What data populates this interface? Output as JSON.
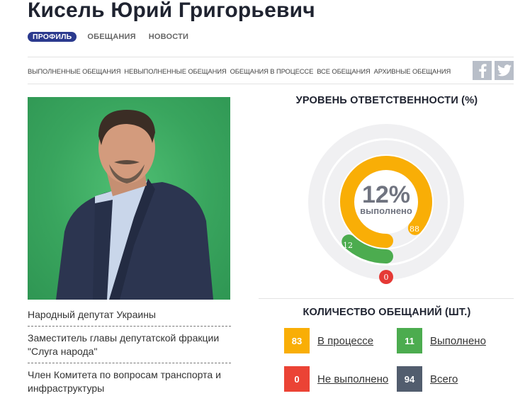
{
  "header": {
    "title": "Кисель Юрий Григорьевич",
    "tabs": [
      {
        "label": "ПРОФИЛЬ",
        "active": true
      },
      {
        "label": "ОБЕЩАНИЯ",
        "active": false
      },
      {
        "label": "НОВОСТИ",
        "active": false
      }
    ]
  },
  "subnav": {
    "items": [
      {
        "label": "ВЫПОЛНЕННЫЕ ОБЕЩАНИЯ"
      },
      {
        "label": "НЕВЫПОЛНЕННЫЕ ОБЕЩАНИЯ"
      },
      {
        "label": "ОБЕЩАНИЯ В ПРОЦЕССЕ"
      },
      {
        "label": "ВСЕ ОБЕЩАНИЯ"
      },
      {
        "label": "АРХИВНЫЕ ОБЕЩАНИЯ"
      }
    ],
    "social": [
      {
        "icon": "facebook-icon",
        "glyph": "f"
      },
      {
        "icon": "twitter-icon"
      }
    ]
  },
  "profile": {
    "roles": [
      "Народный депутат Украины",
      "Заместитель главы депутатской фракции \"Слуга народа\"",
      "Член Комитета по вопросам транспорта и инфраструктуры"
    ]
  },
  "responsibility": {
    "title": "УРОВЕНЬ ОТВЕТСТВЕННОСТИ (%)",
    "center_value": "12%",
    "center_label": "выполнено",
    "labels": {
      "in_progress": "88",
      "done": "12",
      "not_done": "0"
    }
  },
  "chart_data": {
    "type": "radial-bar",
    "title": "УРОВЕНЬ ОТВЕТСТВЕННОСТИ (%)",
    "center_text": "12% выполнено",
    "series": [
      {
        "name": "В процессе",
        "value": 88,
        "color": "#f9ae06"
      },
      {
        "name": "Выполнено",
        "value": 12,
        "color": "#4cac4f"
      },
      {
        "name": "Не выполнено",
        "value": 0,
        "color": "#e53935"
      }
    ],
    "unit": "%"
  },
  "counts": {
    "title": "КОЛИЧЕСТВО ОБЕЩАНИЙ (ШТ.)",
    "items": [
      {
        "value": "83",
        "label": "В процессе",
        "color": "#f9ae06"
      },
      {
        "value": "11",
        "label": "Выполнено",
        "color": "#4cac4f"
      },
      {
        "value": "0",
        "label": "Не выполнено",
        "color": "#eb4335"
      },
      {
        "value": "94",
        "label": "Всего",
        "color": "#525d6e"
      }
    ]
  }
}
